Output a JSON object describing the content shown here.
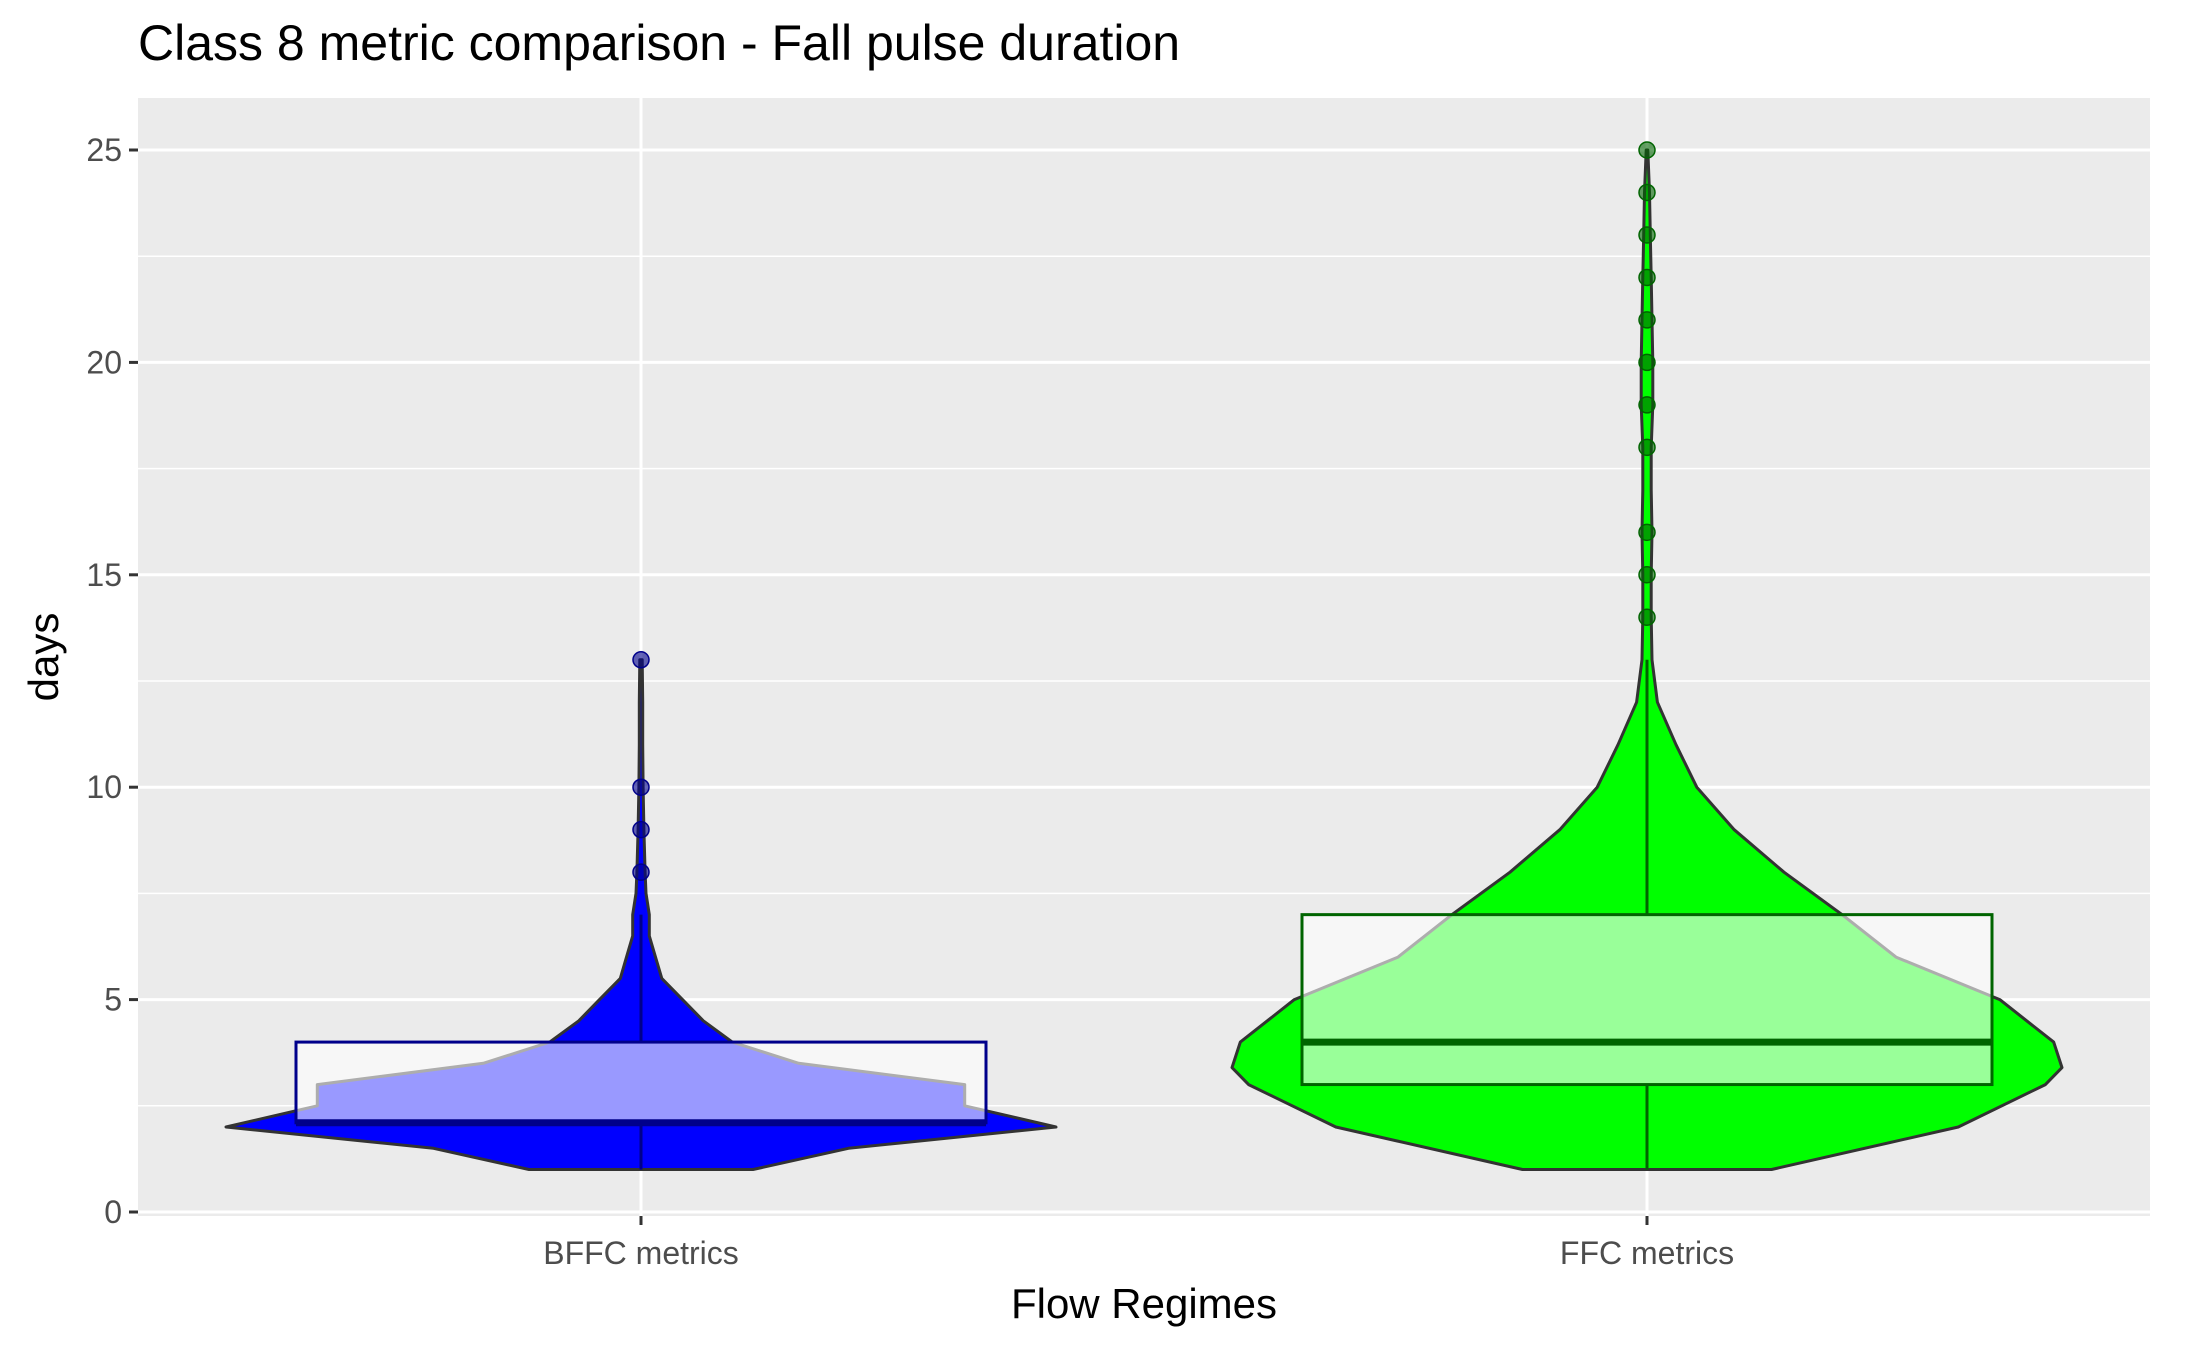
{
  "chart_data": {
    "type": "violin",
    "title": "Class 8 metric comparison - Fall pulse duration",
    "xlabel": "Flow Regimes",
    "ylabel": "days",
    "ylim": [
      0,
      26
    ],
    "yticks": [
      0,
      5,
      10,
      15,
      20,
      25
    ],
    "grid": true,
    "panel_background": "#ebebeb",
    "categories": [
      "BFFC metrics",
      "FFC metrics"
    ],
    "series": [
      {
        "category": "BFFC metrics",
        "fill_color": "#0000ff",
        "box_border_color": "#00008b",
        "point_color": "#00008b",
        "box": {
          "q1": 2.1,
          "median": 2.1,
          "q3": 4,
          "whisker_low": 1,
          "whisker_high": 7
        },
        "outliers": [
          8,
          9,
          10,
          13
        ],
        "density": [
          [
            1,
            0.27
          ],
          [
            1.5,
            0.5
          ],
          [
            2,
            1.0
          ],
          [
            2.5,
            0.78
          ],
          [
            3,
            0.78
          ],
          [
            3.5,
            0.38
          ],
          [
            4,
            0.22
          ],
          [
            4.5,
            0.15
          ],
          [
            5,
            0.1
          ],
          [
            5.5,
            0.05
          ],
          [
            6,
            0.035
          ],
          [
            6.5,
            0.02
          ],
          [
            7,
            0.02
          ],
          [
            7.5,
            0.012
          ],
          [
            8,
            0.01
          ],
          [
            9,
            0.007
          ],
          [
            10,
            0.005
          ],
          [
            11,
            0.004
          ],
          [
            12,
            0.004
          ],
          [
            13,
            0.003
          ]
        ]
      },
      {
        "category": "FFC metrics",
        "fill_color": "#00ff00",
        "box_border_color": "#006400",
        "point_color": "#006400",
        "box": {
          "q1": 3,
          "median": 4,
          "q3": 7,
          "whisker_low": 1,
          "whisker_high": 13
        },
        "outliers": [
          14,
          15,
          16,
          18,
          19,
          20,
          21,
          22,
          23,
          24,
          25
        ],
        "density": [
          [
            1,
            0.3
          ],
          [
            2,
            0.75
          ],
          [
            3,
            0.96
          ],
          [
            3.4,
            1.0
          ],
          [
            4,
            0.98
          ],
          [
            5,
            0.85
          ],
          [
            6,
            0.6
          ],
          [
            7,
            0.47
          ],
          [
            8,
            0.33
          ],
          [
            9,
            0.21
          ],
          [
            10,
            0.12
          ],
          [
            11,
            0.07
          ],
          [
            12,
            0.025
          ],
          [
            13,
            0.012
          ],
          [
            14,
            0.01
          ],
          [
            15,
            0.01
          ],
          [
            16,
            0.012
          ],
          [
            17,
            0.01
          ],
          [
            18,
            0.01
          ],
          [
            19,
            0.014
          ],
          [
            20,
            0.014
          ],
          [
            21,
            0.012
          ],
          [
            22,
            0.01
          ],
          [
            23,
            0.008
          ],
          [
            24,
            0.006
          ],
          [
            25,
            0.002
          ]
        ]
      }
    ]
  }
}
